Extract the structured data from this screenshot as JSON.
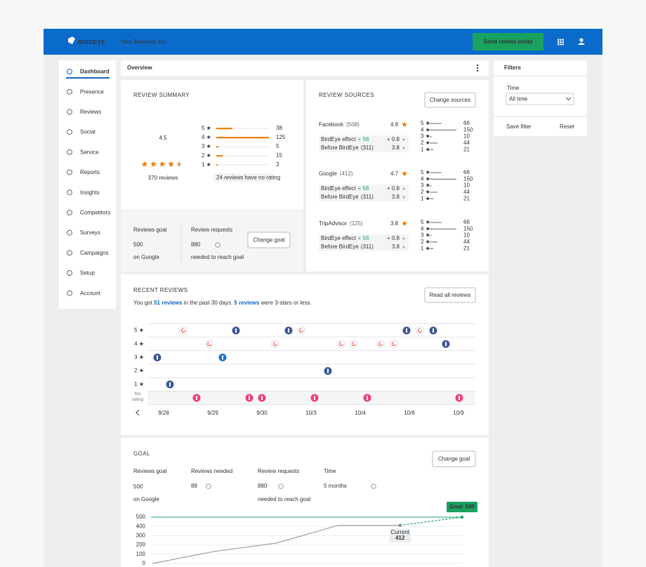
{
  "header": {
    "brand": "BIRDEYE",
    "business": "Your Business Inc",
    "action": "Send review invite"
  },
  "sidebar": [
    "Dashboard",
    "Presence",
    "Reviews",
    "Social",
    "Service",
    "Reports",
    "Insights",
    "Competitors",
    "Surveys",
    "Campaigns",
    "Setup",
    "Account"
  ],
  "overview": "Overview",
  "filters": {
    "title": "Filters",
    "time_label": "Time",
    "time_value": "All time",
    "save": "Save filter",
    "reset": "Reset"
  },
  "star_labels": [
    "5 ★",
    "4 ★",
    "3 ★",
    "2 ★",
    "1 ★"
  ],
  "review_summary": {
    "title": "REVIEW SUMMARY",
    "rating": 4.5,
    "reviews": "370 reviews",
    "distribution": [
      38,
      125,
      5,
      15,
      3
    ],
    "no_rating": "24 reviews have no rating",
    "goal_label": "Reviews goal",
    "goal": 500,
    "goal_note": "on Google",
    "requests_label": "Review requests",
    "requests": 880,
    "requests_note": "needed to reach goal",
    "button": "Change goal"
  },
  "review_sources": {
    "title": "REVIEW SOURCES",
    "button": "Change sources",
    "sources": [
      {
        "name": "Facebook",
        "count": "(508)",
        "rating": 4.9,
        "effect_label": "BirdEye effect",
        "effect_count": "+ 56",
        "effect_rating": "+ 0.8",
        "before_label": "Before BirdEye",
        "before_count": "(311)",
        "before_rating": 3.8,
        "distribution": [
          66,
          150,
          10,
          44,
          21
        ]
      },
      {
        "name": "Google",
        "count": "(412)",
        "rating": 4.7,
        "effect_label": "BirdEye effect",
        "effect_count": "+ 56",
        "effect_rating": "+ 0.8",
        "before_label": "Before BirdEye",
        "before_count": "(311)",
        "before_rating": 3.8,
        "distribution": [
          66,
          150,
          10,
          44,
          21
        ]
      },
      {
        "name": "TripAdvisor",
        "count": "(125)",
        "rating": 3.8,
        "effect_label": "BirdEye effect",
        "effect_count": "+ 56",
        "effect_rating": "+ 0.8",
        "before_label": "Before BirdEye",
        "before_count": "(311)",
        "before_rating": 3.8,
        "distribution": [
          66,
          150,
          10,
          44,
          21
        ]
      }
    ]
  },
  "recent_reviews": {
    "title": "RECENT REVIEWS",
    "sentence": [
      "You got ",
      "51 reviews",
      " in the past 30 days. ",
      "5 reviews",
      " were 3-stars or less."
    ],
    "button": "Read all reviews",
    "no_rating": "No rating",
    "dates": [
      "9/28",
      "9/29",
      "9/30",
      "10/3",
      "10/4",
      "10/6",
      "10/9"
    ]
  },
  "goal": {
    "title": "GOAL",
    "button": "Change goal",
    "goal_label": "Reviews goal",
    "goal": 500,
    "goal_note": "on Google",
    "needed_label": "Reviews needed",
    "needed": 88,
    "requests_label": "Review requests",
    "requests": 880,
    "requests_note": "needed to reach goal",
    "time_label": "Time",
    "time": "5 months"
  },
  "chart_data": {
    "type": "line",
    "ylim": [
      0,
      500
    ],
    "yticks": [
      0,
      100,
      200,
      300,
      400,
      500
    ],
    "grid": true,
    "series": [
      {
        "color": "#9e9e9e",
        "dashed": false,
        "values": [
          0,
          130,
          220,
          412,
          412,
          null
        ]
      },
      {
        "color": "#1aa260",
        "dashed": true,
        "values": [
          null,
          null,
          null,
          null,
          412,
          500
        ]
      }
    ],
    "goal": 500,
    "goal_color": "#1aa260",
    "goal_label": "Goal: 500",
    "current_label": "Current",
    "current": 412
  }
}
